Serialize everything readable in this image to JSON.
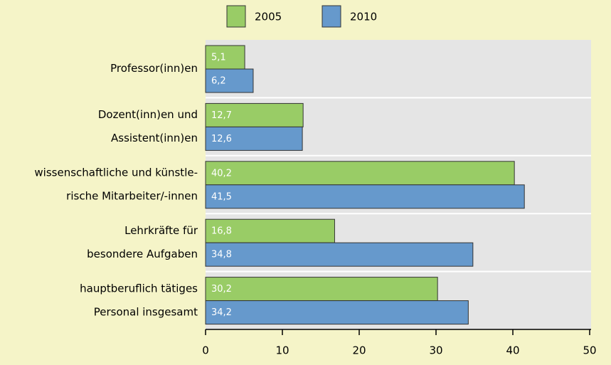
{
  "chart_data": {
    "type": "bar",
    "orientation": "horizontal",
    "categories": [
      [
        "Professor(inn)en"
      ],
      [
        "Dozent(inn)en und",
        "Assistent(inn)en"
      ],
      [
        "wissenschaftliche und künstle-",
        "rische Mitarbeiter/-innen"
      ],
      [
        "Lehrkräfte für",
        "besondere Aufgaben"
      ],
      [
        "hauptberuflich tätiges",
        "Personal insgesamt"
      ]
    ],
    "series": [
      {
        "name": "2005",
        "color": "#99cc66",
        "values": [
          5.1,
          12.7,
          40.2,
          16.8,
          30.2
        ],
        "value_labels": [
          "5,1",
          "12,7",
          "40,2",
          "16,8",
          "30,2"
        ]
      },
      {
        "name": "2010",
        "color": "#6699cc",
        "values": [
          6.2,
          12.6,
          41.5,
          34.8,
          34.2
        ],
        "value_labels": [
          "6,2",
          "12,6",
          "41,5",
          "34,8",
          "34,2"
        ]
      }
    ],
    "xlim": [
      0,
      50
    ],
    "xticks": [
      0,
      10,
      20,
      30,
      40,
      50
    ],
    "legend": "top"
  }
}
